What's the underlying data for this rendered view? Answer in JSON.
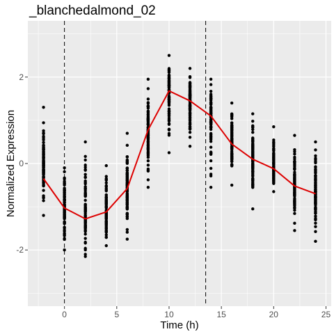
{
  "chart_data": {
    "type": "scatter",
    "title": "_blanchedalmond_02",
    "xlabel": "Time (h)",
    "ylabel": "Normalized Expression",
    "xlim": [
      -3.5,
      25.5
    ],
    "ylim": [
      -3.3,
      3.3
    ],
    "x_ticks": [
      0,
      5,
      10,
      15,
      20,
      25
    ],
    "x_tick_labels": [
      "0",
      "5",
      "10",
      "15",
      "20",
      "25"
    ],
    "y_ticks": [
      -2,
      0,
      2
    ],
    "y_tick_labels": [
      "-2",
      "0",
      "2"
    ],
    "grid": true,
    "background_color": "#ebebeb",
    "grid_color": "#ffffff",
    "point_color": "#000000",
    "line_color": "#dd0000",
    "vlines": [
      0,
      13.5
    ],
    "time_points": [
      -2,
      0,
      2,
      4,
      6,
      8,
      10,
      12,
      14,
      16,
      18,
      20,
      22,
      24
    ],
    "point_groups": [
      {
        "x": -2,
        "min": -1.2,
        "max": 1.3,
        "center": -0.1
      },
      {
        "x": 0,
        "min": -2.0,
        "max": -0.1,
        "center": -0.95
      },
      {
        "x": 2,
        "min": -2.15,
        "max": 0.5,
        "center": -1.2
      },
      {
        "x": 4,
        "min": -1.9,
        "max": -0.05,
        "center": -1.1
      },
      {
        "x": 6,
        "min": -1.75,
        "max": 0.7,
        "center": -0.6
      },
      {
        "x": 8,
        "min": -0.55,
        "max": 1.95,
        "center": 0.75
      },
      {
        "x": 10,
        "min": 0.25,
        "max": 2.5,
        "center": 1.65
      },
      {
        "x": 12,
        "min": 0.4,
        "max": 2.2,
        "center": 1.45
      },
      {
        "x": 14,
        "min": -0.55,
        "max": 1.95,
        "center": 1.05
      },
      {
        "x": 16,
        "min": -0.5,
        "max": 1.4,
        "center": 0.4
      },
      {
        "x": 18,
        "min": -1.05,
        "max": 1.15,
        "center": 0.1
      },
      {
        "x": 20,
        "min": -0.65,
        "max": 0.85,
        "center": -0.1
      },
      {
        "x": 22,
        "min": -1.55,
        "max": 0.65,
        "center": -0.5
      },
      {
        "x": 24,
        "min": -1.8,
        "max": 0.5,
        "center": -0.7
      }
    ],
    "series": [
      {
        "name": "mean",
        "x": [
          -2,
          0,
          2,
          4,
          6,
          8,
          10,
          12,
          14,
          16,
          18,
          20,
          22,
          24
        ],
        "values": [
          -0.35,
          -1.03,
          -1.28,
          -1.12,
          -0.58,
          0.78,
          1.68,
          1.45,
          1.1,
          0.45,
          0.1,
          -0.12,
          -0.52,
          -0.7
        ]
      }
    ]
  }
}
